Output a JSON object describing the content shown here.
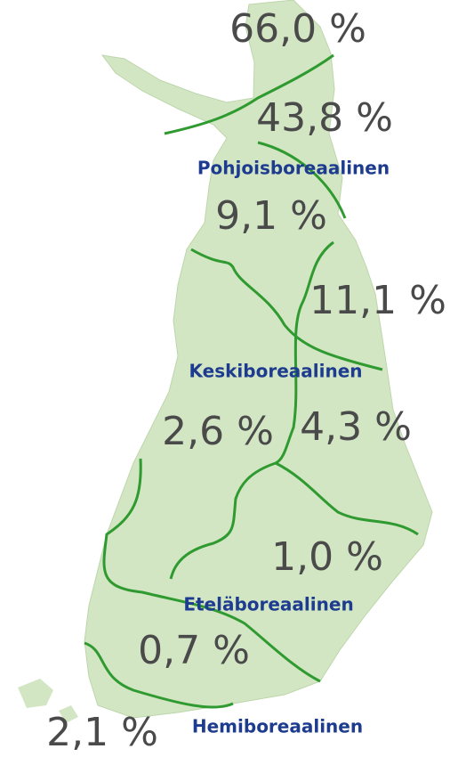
{
  "percentages": [
    "66,0 %",
    "43,8 %",
    "9,1 %",
    "11,1 %",
    "2,6 %",
    "4,3 %",
    "1,0 %",
    "0,7 %",
    "2,1 %"
  ],
  "zones": [
    "Pohjoisboreaalinen",
    "Keskiboreaalinen",
    "Eteläboreaalinen",
    "Hemiboreaalinen"
  ]
}
